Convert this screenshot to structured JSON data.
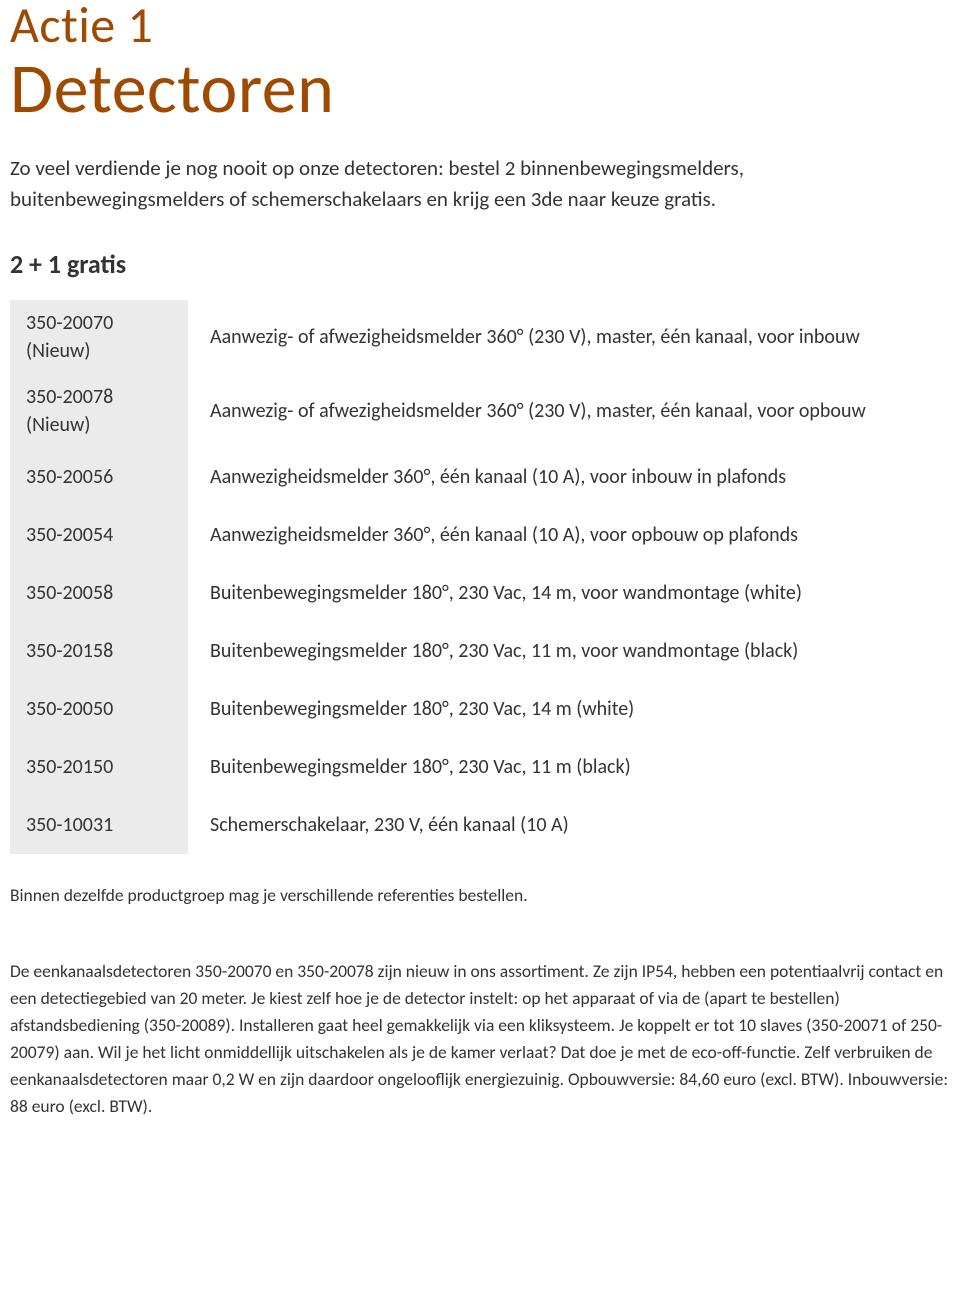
{
  "colors": {
    "accent": "#a04900",
    "text": "#333333",
    "refBg": "#ebebeb",
    "pageBg": "#ffffff"
  },
  "title": {
    "line1": "Actie 1",
    "line2": "Detectoren"
  },
  "intro": "Zo veel verdiende je nog nooit op onze detectoren: bestel 2 binnenbewegingsmelders, buitenbewegingsmelders of schemerschakelaars en krijg een 3de naar keuze gratis.",
  "subheading": "2 + 1 gratis",
  "products": [
    {
      "ref": "350-20070",
      "refSub": "(Nieuw)",
      "desc": "Aanwezig- of afwezigheidsmelder 360° (230 V), master, één kanaal, voor inbouw"
    },
    {
      "ref": "350-20078",
      "refSub": "(Nieuw)",
      "desc": "Aanwezig- of afwezigheidsmelder 360° (230 V), master, één kanaal, voor opbouw"
    },
    {
      "ref": "350-20056",
      "refSub": "",
      "desc": "Aanwezigheidsmelder 360°, één kanaal (10 A), voor inbouw in plafonds"
    },
    {
      "ref": "350-20054",
      "refSub": "",
      "desc": "Aanwezigheidsmelder 360°, één kanaal (10 A), voor opbouw op plafonds"
    },
    {
      "ref": "350-20058",
      "refSub": "",
      "desc": "Buitenbewegingsmelder 180°, 230 Vac, 14 m, voor wandmontage (white)"
    },
    {
      "ref": "350-20158",
      "refSub": "",
      "desc": "Buitenbewegingsmelder 180°, 230 Vac, 11 m, voor wandmontage (black)"
    },
    {
      "ref": "350-20050",
      "refSub": "",
      "desc": "Buitenbewegingsmelder 180°, 230 Vac, 14 m (white)"
    },
    {
      "ref": "350-20150",
      "refSub": "",
      "desc": "Buitenbewegingsmelder 180°, 230 Vac, 11 m (black)"
    },
    {
      "ref": "350-10031",
      "refSub": "",
      "desc": "Schemerschakelaar, 230 V, één kanaal (10 A)"
    }
  ],
  "footnote": "Binnen dezelfde productgroep mag je verschillende referenties bestellen.",
  "bodyNote": "De eenkanaalsdetectoren 350-20070 en 350-20078 zijn nieuw in ons assortiment. Ze zijn IP54, hebben een potentiaalvrij contact en een detectiegebied van 20 meter. Je kiest zelf hoe je de detector instelt: op het apparaat of via de (apart te bestellen) afstandsbediening (350-20089). Installeren gaat heel gemakkelijk via een kliksysteem. Je koppelt er tot 10 slaves (350-20071 of 250-20079) aan. Wil je het licht onmiddellijk uitschakelen als je de kamer verlaat? Dat doe je met de eco-off-functie. Zelf verbruiken de eenkanaalsdetectoren maar 0,2 W en zijn daardoor ongelooflijk energiezuinig. Opbouwversie: 84,60 euro (excl. BTW). Inbouwversie: 88 euro (excl. BTW)."
}
